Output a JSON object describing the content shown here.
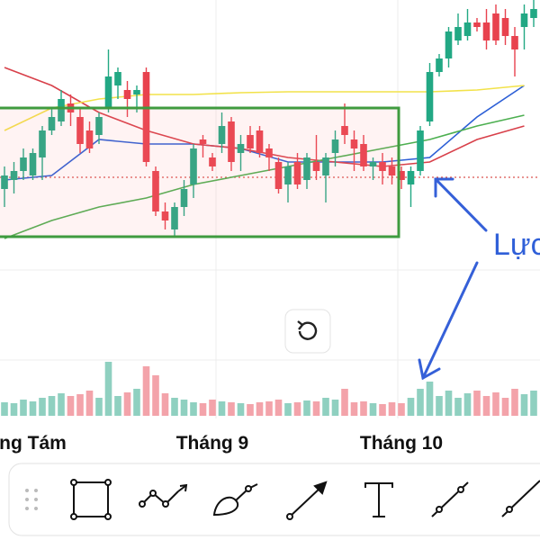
{
  "chart_data": {
    "type": "candlestick",
    "categories": [
      null,
      null,
      null,
      "ng Tám",
      null,
      null,
      null,
      null,
      null,
      null,
      null,
      null,
      null,
      null,
      null,
      null,
      null,
      null,
      null,
      null,
      null,
      null,
      "Tháng 9",
      null,
      null,
      null,
      null,
      null,
      null,
      null,
      null,
      null,
      null,
      null,
      null,
      null,
      null,
      null,
      null,
      null,
      null,
      null,
      "Tháng 10",
      null,
      null,
      null,
      null,
      null,
      null,
      null,
      null,
      null,
      null,
      null,
      null,
      null,
      null
    ],
    "open": [
      390,
      400,
      410,
      405,
      425,
      455,
      465,
      485,
      470,
      455,
      450,
      480,
      505,
      500,
      495,
      520,
      410,
      365,
      345,
      370,
      395,
      445,
      425,
      440,
      465,
      430,
      450,
      455,
      435,
      420,
      395,
      420,
      400,
      420,
      405,
      430,
      460,
      445,
      440,
      415,
      420,
      415,
      410,
      395,
      410,
      465,
      520,
      535,
      555,
      560,
      575,
      575,
      585,
      580,
      560,
      570,
      580
    ],
    "high": [
      415,
      420,
      435,
      435,
      460,
      480,
      500,
      495,
      480,
      465,
      475,
      545,
      525,
      510,
      505,
      525,
      415,
      375,
      375,
      400,
      440,
      450,
      430,
      475,
      470,
      450,
      460,
      460,
      440,
      425,
      420,
      430,
      430,
      450,
      430,
      455,
      485,
      455,
      450,
      425,
      430,
      425,
      415,
      415,
      460,
      530,
      540,
      570,
      585,
      590,
      580,
      590,
      595,
      590,
      570,
      595,
      600
    ],
    "low": [
      370,
      385,
      400,
      400,
      400,
      450,
      460,
      460,
      430,
      430,
      440,
      475,
      490,
      470,
      475,
      415,
      360,
      345,
      338,
      360,
      380,
      425,
      410,
      430,
      410,
      410,
      430,
      425,
      410,
      385,
      375,
      390,
      390,
      400,
      375,
      415,
      440,
      410,
      410,
      400,
      395,
      395,
      390,
      370,
      405,
      460,
      515,
      525,
      550,
      555,
      565,
      545,
      550,
      550,
      515,
      545,
      570
    ],
    "close": [
      405,
      410,
      425,
      430,
      455,
      470,
      490,
      475,
      440,
      435,
      470,
      515,
      520,
      490,
      500,
      420,
      365,
      355,
      370,
      390,
      435,
      440,
      415,
      460,
      420,
      440,
      435,
      430,
      425,
      390,
      415,
      395,
      425,
      410,
      425,
      445,
      450,
      435,
      415,
      420,
      410,
      405,
      400,
      410,
      455,
      520,
      535,
      565,
      570,
      575,
      570,
      555,
      555,
      560,
      545,
      585,
      590
    ],
    "ylim": [
      140,
      600
    ],
    "up_color": "#22a884",
    "down_color": "#e8424e",
    "price_line": 403,
    "price_line_color": "#d9534f",
    "lines": [
      {
        "color": "#2c5fd6",
        "x": [
          0,
          5,
          10,
          15,
          20,
          25,
          30,
          35,
          40,
          45,
          50,
          55
        ],
        "values": [
          400,
          405,
          445,
          440,
          440,
          435,
          420,
          420,
          420,
          425,
          470,
          505
        ]
      },
      {
        "color": "#d8404a",
        "x": [
          0,
          5,
          10,
          15,
          20,
          25,
          30,
          35,
          40,
          45,
          50,
          55
        ],
        "values": [
          525,
          505,
          475,
          455,
          440,
          435,
          425,
          420,
          415,
          420,
          445,
          460
        ]
      },
      {
        "color": "#f2e24a",
        "x": [
          0,
          5,
          10,
          15,
          20,
          25,
          30,
          35,
          40,
          45,
          50,
          55
        ],
        "values": [
          455,
          480,
          490,
          495,
          495,
          497,
          498,
          498,
          498,
          498,
          500,
          505
        ]
      },
      {
        "color": "#4caf50",
        "x": [
          0,
          5,
          10,
          15,
          20,
          25,
          30,
          35,
          40,
          45,
          50,
          55
        ],
        "values": [
          335,
          355,
          370,
          380,
          395,
          405,
          415,
          425,
          435,
          445,
          460,
          472
        ]
      }
    ],
    "volume": [
      15,
      14,
      18,
      16,
      20,
      22,
      25,
      22,
      24,
      28,
      20,
      60,
      22,
      26,
      30,
      55,
      45,
      25,
      20,
      18,
      15,
      14,
      18,
      16,
      15,
      14,
      13,
      15,
      16,
      18,
      14,
      15,
      17,
      16,
      20,
      18,
      30,
      15,
      16,
      14,
      13,
      15,
      14,
      20,
      30,
      38,
      22,
      28,
      20,
      25,
      28,
      22,
      26,
      20,
      30,
      24,
      28
    ],
    "volume_ylim": [
      0,
      100
    ],
    "volume_up_color": "#8fd0c0",
    "volume_down_color": "#f3a3aa",
    "annotation": "Lực"
  }
}
